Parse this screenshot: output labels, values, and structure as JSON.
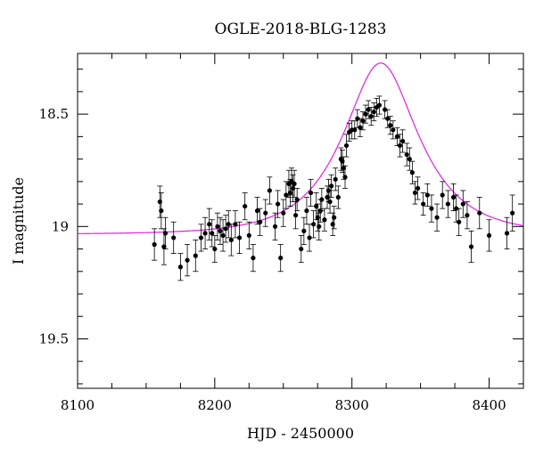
{
  "chart_data": {
    "type": "scatter",
    "title": "OGLE-2018-BLG-1283",
    "xlabel": "HJD - 2450000",
    "ylabel": "I magnitude",
    "xlim": [
      8100,
      8425
    ],
    "ylim": [
      19.72,
      18.23
    ],
    "y_inverted": true,
    "x_ticks": [
      8100,
      8200,
      8300,
      8400
    ],
    "x_tick_labels": [
      "8100",
      "8200",
      "8300",
      "8400"
    ],
    "y_ticks": [
      18.5,
      19,
      19.5
    ],
    "y_tick_labels": [
      "18.5",
      "19",
      "19.5"
    ],
    "grid": false,
    "legend": "none",
    "colors": {
      "data": "#000000",
      "model": "#e020e0"
    },
    "series": [
      {
        "type": "scatter_errorbar",
        "points": [
          [
            8156,
            19.08,
            0.07
          ],
          [
            8160,
            18.89,
            0.07
          ],
          [
            8161,
            18.93,
            0.08
          ],
          [
            8163,
            19.09,
            0.08
          ],
          [
            8164,
            19.03,
            0.07
          ],
          [
            8170,
            19.05,
            0.07
          ],
          [
            8175,
            19.18,
            0.06
          ],
          [
            8180,
            19.15,
            0.07
          ],
          [
            8186,
            19.13,
            0.07
          ],
          [
            8190,
            19.05,
            0.06
          ],
          [
            8193,
            19.03,
            0.07
          ],
          [
            8196,
            18.99,
            0.07
          ],
          [
            8198,
            19.03,
            0.06
          ],
          [
            8200,
            19.1,
            0.06
          ],
          [
            8202,
            19.0,
            0.06
          ],
          [
            8204,
            19.02,
            0.06
          ],
          [
            8206,
            19.04,
            0.07
          ],
          [
            8208,
            19.01,
            0.06
          ],
          [
            8210,
            18.99,
            0.06
          ],
          [
            8212,
            19.06,
            0.07
          ],
          [
            8215,
            18.99,
            0.06
          ],
          [
            8218,
            19.05,
            0.07
          ],
          [
            8222,
            18.91,
            0.06
          ],
          [
            8225,
            19.04,
            0.06
          ],
          [
            8228,
            19.14,
            0.06
          ],
          [
            8231,
            18.93,
            0.06
          ],
          [
            8233,
            18.98,
            0.06
          ],
          [
            8237,
            18.94,
            0.06
          ],
          [
            8240,
            18.84,
            0.06
          ],
          [
            8244,
            19.0,
            0.06
          ],
          [
            8246,
            18.9,
            0.06
          ],
          [
            8248,
            19.14,
            0.06
          ],
          [
            8250,
            18.94,
            0.06
          ],
          [
            8252,
            18.86,
            0.06
          ],
          [
            8254,
            18.81,
            0.06
          ],
          [
            8255,
            18.85,
            0.06
          ],
          [
            8256,
            18.8,
            0.06
          ],
          [
            8257,
            18.83,
            0.06
          ],
          [
            8258,
            18.81,
            0.06
          ],
          [
            8259,
            18.95,
            0.06
          ],
          [
            8260,
            18.88,
            0.05
          ],
          [
            8263,
            19.1,
            0.06
          ],
          [
            8265,
            19.02,
            0.06
          ],
          [
            8267,
            18.93,
            0.06
          ],
          [
            8269,
            19.05,
            0.06
          ],
          [
            8270,
            18.85,
            0.06
          ],
          [
            8272,
            18.99,
            0.06
          ],
          [
            8274,
            18.91,
            0.06
          ],
          [
            8275,
            18.96,
            0.06
          ],
          [
            8276,
            19.0,
            0.06
          ],
          [
            8277,
            18.93,
            0.05
          ],
          [
            8278,
            18.88,
            0.05
          ],
          [
            8280,
            18.97,
            0.05
          ],
          [
            8282,
            18.87,
            0.05
          ],
          [
            8283,
            18.84,
            0.05
          ],
          [
            8284,
            18.89,
            0.05
          ],
          [
            8285,
            18.82,
            0.05
          ],
          [
            8286,
            18.99,
            0.05
          ],
          [
            8287,
            18.96,
            0.05
          ],
          [
            8288,
            18.79,
            0.05
          ],
          [
            8290,
            18.87,
            0.05
          ],
          [
            8292,
            18.7,
            0.05
          ],
          [
            8293,
            18.71,
            0.05
          ],
          [
            8294,
            18.74,
            0.05
          ],
          [
            8295,
            18.78,
            0.05
          ],
          [
            8296,
            18.64,
            0.05
          ],
          [
            8298,
            18.58,
            0.04
          ],
          [
            8300,
            18.57,
            0.04
          ],
          [
            8302,
            18.57,
            0.04
          ],
          [
            8304,
            18.52,
            0.04
          ],
          [
            8306,
            18.56,
            0.04
          ],
          [
            8308,
            18.53,
            0.04
          ],
          [
            8310,
            18.5,
            0.04
          ],
          [
            8312,
            18.48,
            0.04
          ],
          [
            8314,
            18.51,
            0.04
          ],
          [
            8316,
            18.49,
            0.04
          ],
          [
            8318,
            18.47,
            0.04
          ],
          [
            8320,
            18.46,
            0.04
          ],
          [
            8324,
            18.48,
            0.04
          ],
          [
            8326,
            18.52,
            0.04
          ],
          [
            8328,
            18.55,
            0.04
          ],
          [
            8330,
            18.57,
            0.04
          ],
          [
            8333,
            18.6,
            0.04
          ],
          [
            8335,
            18.64,
            0.05
          ],
          [
            8337,
            18.62,
            0.05
          ],
          [
            8340,
            18.68,
            0.05
          ],
          [
            8342,
            18.7,
            0.05
          ],
          [
            8344,
            18.76,
            0.05
          ],
          [
            8346,
            18.85,
            0.05
          ],
          [
            8348,
            18.83,
            0.05
          ],
          [
            8352,
            18.9,
            0.05
          ],
          [
            8355,
            18.86,
            0.05
          ],
          [
            8358,
            18.92,
            0.06
          ],
          [
            8362,
            18.96,
            0.06
          ],
          [
            8366,
            18.86,
            0.06
          ],
          [
            8370,
            18.9,
            0.06
          ],
          [
            8374,
            18.87,
            0.06
          ],
          [
            8376,
            18.92,
            0.06
          ],
          [
            8378,
            18.98,
            0.06
          ],
          [
            8381,
            18.9,
            0.06
          ],
          [
            8384,
            18.95,
            0.06
          ],
          [
            8387,
            19.09,
            0.07
          ],
          [
            8393,
            18.94,
            0.07
          ],
          [
            8400,
            19.04,
            0.07
          ],
          [
            8413,
            19.03,
            0.07
          ],
          [
            8417,
            18.94,
            0.08
          ]
        ]
      },
      {
        "type": "line",
        "model": "paczynski",
        "params": {
          "t0": 8321.0,
          "u0": 0.55,
          "tE": 45.0,
          "base_mag": 19.035
        }
      }
    ]
  }
}
